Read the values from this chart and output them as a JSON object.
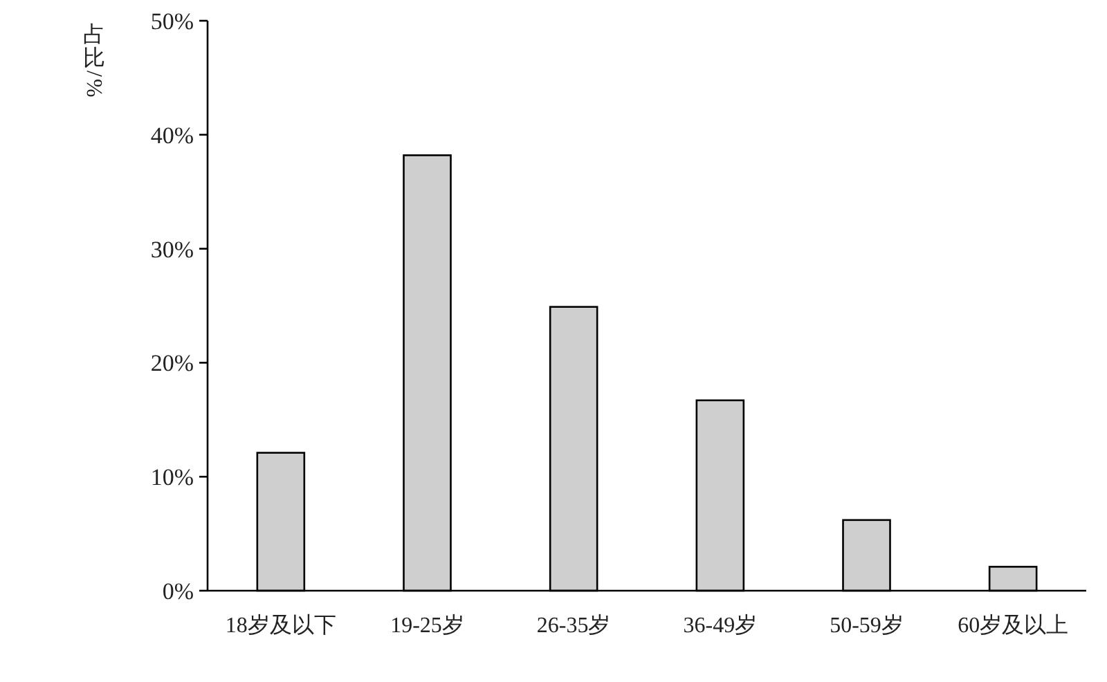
{
  "chart_data": {
    "type": "bar",
    "ylabel": "占比/%",
    "categories": [
      "18岁及以下",
      "19-25岁",
      "26-35岁",
      "36-49岁",
      "50-59岁",
      "60岁及以上"
    ],
    "values": [
      12.1,
      38.2,
      24.9,
      16.7,
      6.2,
      2.1
    ],
    "color": "#d0cfd0",
    "ylim": [
      0,
      50
    ],
    "yticks": [
      {
        "value": 0,
        "label": "0%"
      },
      {
        "value": 10,
        "label": "10%"
      },
      {
        "value": 20,
        "label": "20%"
      },
      {
        "value": 30,
        "label": "30%"
      },
      {
        "value": 40,
        "label": "40%"
      },
      {
        "value": 50,
        "label": "50%"
      }
    ],
    "grid": false
  }
}
